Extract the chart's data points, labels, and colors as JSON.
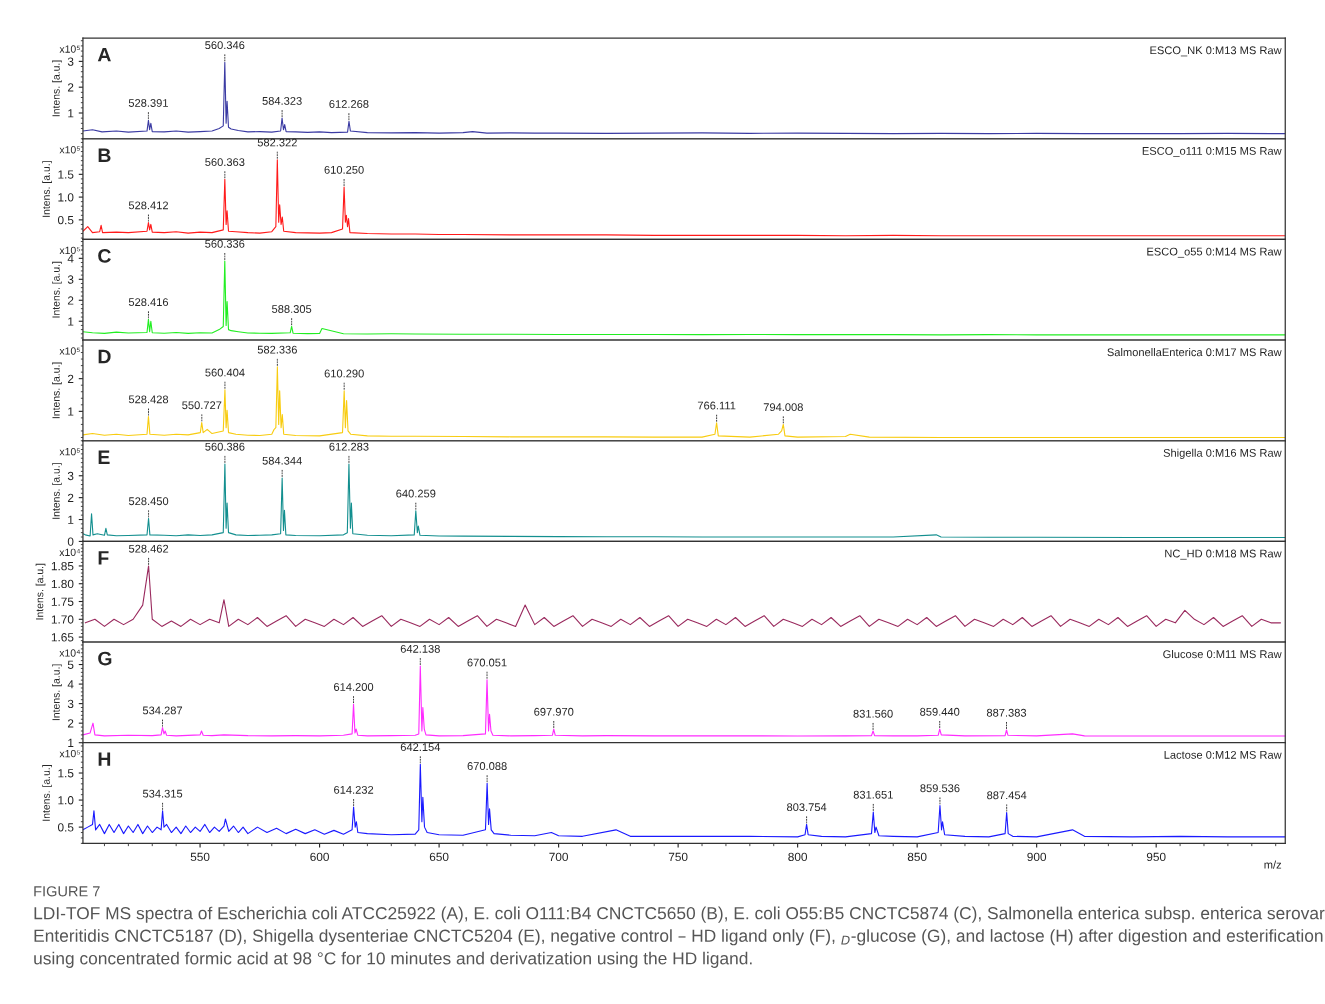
{
  "chart_data": [
    {
      "type": "line",
      "title": "A",
      "subtitle": "ESCO_NK 0:M13 MS Raw",
      "ylabel": "Intens. [a.u.]",
      "xlim": [
        501,
        1004
      ],
      "xticks": [
        550,
        600,
        650,
        700,
        750,
        800,
        850,
        900,
        950
      ],
      "ylim": [
        0,
        3.9
      ],
      "yticks": [
        1,
        2,
        3
      ],
      "tick_labels": "y",
      "series": [
        {
          "color": "#3b3ba3",
          "x": [
            501,
            505,
            509,
            515,
            520,
            527.8,
            528.4,
            528.9,
            529.4,
            530,
            535,
            540,
            545,
            550,
            555,
            558,
            559.7,
            560.35,
            560.9,
            561.3,
            561.9,
            563,
            566,
            570,
            575,
            580,
            583.7,
            584.3,
            584.9,
            585.4,
            586,
            590,
            595,
            600,
            605,
            611.7,
            612.3,
            612.9,
            620,
            630,
            640,
            650,
            660,
            664,
            670,
            680,
            690,
            700,
            720,
            740,
            760,
            780,
            800,
            820,
            840,
            860,
            880,
            900,
            920,
            940,
            960,
            980,
            1004
          ],
          "values": [
            0.3,
            0.35,
            0.27,
            0.3,
            0.26,
            0.3,
            0.72,
            0.35,
            0.6,
            0.28,
            0.27,
            0.3,
            0.26,
            0.28,
            0.3,
            0.4,
            0.5,
            2.96,
            0.6,
            1.45,
            0.45,
            0.38,
            0.32,
            0.27,
            0.28,
            0.26,
            0.3,
            0.8,
            0.35,
            0.55,
            0.28,
            0.27,
            0.25,
            0.27,
            0.24,
            0.26,
            0.68,
            0.3,
            0.24,
            0.23,
            0.24,
            0.22,
            0.24,
            0.28,
            0.22,
            0.23,
            0.22,
            0.22,
            0.21,
            0.22,
            0.23,
            0.21,
            0.22,
            0.21,
            0.2,
            0.21,
            0.2,
            0.21,
            0.2,
            0.2,
            0.2,
            0.21,
            0.2
          ]
        }
      ],
      "annotations": [
        "x10⁵",
        {
          "text": "528.391",
          "x": 528.391,
          "y": 0.72
        },
        {
          "text": "560.346",
          "x": 560.346,
          "y": 2.96
        },
        {
          "text": "584.323",
          "x": 584.323,
          "y": 0.8
        },
        {
          "text": "612.268",
          "x": 612.268,
          "y": 0.68
        }
      ]
    },
    {
      "type": "line",
      "title": "B",
      "subtitle": "ESCO_o111 0:M15 MS Raw",
      "ylabel": "Intens. [a.u.]",
      "xlim": [
        501,
        1004
      ],
      "xticks": [
        550,
        600,
        650,
        700,
        750,
        800,
        850,
        900,
        950
      ],
      "ylim": [
        0.07,
        2.28
      ],
      "yticks": [
        0.5,
        {
          "value": 1.0,
          "label": "1.0"
        },
        1.5
      ],
      "tick_labels": "y",
      "series": [
        {
          "color": "#ff1a1a",
          "x": [
            501,
            503,
            505,
            508,
            508.6,
            509.2,
            515,
            520,
            527.8,
            528.4,
            528.9,
            529.4,
            530,
            535,
            540,
            545,
            550,
            555,
            559.7,
            560.36,
            560.9,
            561.3,
            561.9,
            565,
            570,
            575,
            580,
            581.7,
            582.32,
            582.9,
            583.3,
            583.9,
            584.4,
            585,
            590,
            600,
            605,
            609.6,
            610.25,
            610.8,
            611.2,
            611.7,
            612.1,
            612.7,
            620,
            630,
            640,
            650,
            660,
            680,
            700,
            720,
            740,
            760,
            780,
            800,
            820,
            840,
            860,
            880,
            900,
            920,
            940,
            960,
            980,
            1004
          ],
          "values": [
            0.25,
            0.35,
            0.22,
            0.24,
            0.38,
            0.22,
            0.23,
            0.22,
            0.25,
            0.44,
            0.28,
            0.4,
            0.23,
            0.22,
            0.24,
            0.21,
            0.23,
            0.22,
            0.28,
            1.39,
            0.4,
            0.7,
            0.25,
            0.24,
            0.22,
            0.21,
            0.24,
            0.35,
            1.82,
            0.45,
            0.83,
            0.4,
            0.56,
            0.25,
            0.22,
            0.21,
            0.22,
            0.3,
            1.22,
            0.45,
            0.6,
            0.35,
            0.53,
            0.22,
            0.2,
            0.19,
            0.19,
            0.18,
            0.18,
            0.17,
            0.17,
            0.17,
            0.16,
            0.16,
            0.16,
            0.16,
            0.15,
            0.16,
            0.15,
            0.15,
            0.15,
            0.15,
            0.15,
            0.15,
            0.15,
            0.15
          ]
        }
      ],
      "annotations": [
        "x10⁵",
        {
          "text": "528.412",
          "x": 528.412,
          "y": 0.44
        },
        {
          "text": "560.363",
          "x": 560.363,
          "y": 1.39
        },
        {
          "text": "582.322",
          "x": 582.322,
          "y": 1.82
        },
        {
          "text": "610.250",
          "x": 610.25,
          "y": 1.22
        }
      ]
    },
    {
      "type": "line",
      "title": "C",
      "subtitle": "ESCO_o55 0:M14 MS Raw",
      "ylabel": "Intens. [a.u.]",
      "xlim": [
        501,
        1004
      ],
      "xticks": [
        550,
        600,
        650,
        700,
        750,
        800,
        850,
        900,
        950
      ],
      "ylim": [
        0.1,
        4.9
      ],
      "yticks": [
        1,
        2,
        3,
        4
      ],
      "tick_labels": "y",
      "series": [
        {
          "color": "#22ee22",
          "x": [
            501,
            505,
            510,
            515,
            520,
            527.8,
            528.4,
            528.9,
            529.4,
            530,
            535,
            540,
            545,
            550,
            555,
            558,
            559.7,
            560.34,
            560.9,
            561.3,
            561.9,
            563,
            566,
            570,
            575,
            580,
            587.7,
            588.3,
            588.9,
            595,
            600,
            601,
            610,
            620,
            630,
            640,
            660,
            680,
            700,
            720,
            740,
            760,
            780,
            800,
            820,
            840,
            860,
            880,
            900,
            920,
            940,
            960,
            980,
            1004
          ],
          "values": [
            0.5,
            0.45,
            0.42,
            0.48,
            0.44,
            0.46,
            1.09,
            0.5,
            1.0,
            0.45,
            0.43,
            0.46,
            0.42,
            0.45,
            0.44,
            0.6,
            0.75,
            3.87,
            0.8,
            1.94,
            0.6,
            0.55,
            0.5,
            0.44,
            0.43,
            0.42,
            0.45,
            0.76,
            0.43,
            0.41,
            0.42,
            0.65,
            0.4,
            0.39,
            0.4,
            0.39,
            0.38,
            0.38,
            0.37,
            0.37,
            0.37,
            0.36,
            0.37,
            0.36,
            0.36,
            0.36,
            0.35,
            0.36,
            0.35,
            0.35,
            0.35,
            0.35,
            0.35,
            0.35
          ]
        }
      ],
      "annotations": [
        "x10⁵",
        {
          "text": "528.416",
          "x": 528.416,
          "y": 1.09
        },
        {
          "text": "560.336",
          "x": 560.336,
          "y": 3.87
        },
        {
          "text": "588.305",
          "x": 588.305,
          "y": 0.76
        }
      ]
    },
    {
      "type": "line",
      "title": "D",
      "subtitle": "SalmonellaEnterica 0:M17 MS Raw",
      "ylabel": "Intens. [a.u.]",
      "xlim": [
        501,
        1004
      ],
      "xticks": [
        550,
        600,
        650,
        700,
        750,
        800,
        850,
        900,
        950
      ],
      "ylim": [
        0.1,
        3.18
      ],
      "yticks": [
        1,
        2
      ],
      "tick_labels": "y",
      "series": [
        {
          "color": "#f8cc10",
          "x": [
            501,
            505,
            510,
            515,
            520,
            527.8,
            528.4,
            529,
            535,
            540,
            545,
            550.1,
            550.7,
            551.3,
            553,
            555,
            559.7,
            560.4,
            560.9,
            561.3,
            561.9,
            565,
            570,
            575,
            580,
            581,
            581.7,
            582.34,
            582.9,
            583.3,
            583.9,
            584.4,
            585,
            590,
            600,
            609.6,
            610.29,
            610.8,
            611.3,
            611.9,
            613,
            620,
            630,
            640,
            660,
            680,
            700,
            720,
            740,
            760,
            765.4,
            766.1,
            766.8,
            780,
            792,
            793.3,
            794,
            794.7,
            800,
            820,
            822,
            830,
            860,
            900,
            940,
            980,
            1004
          ],
          "values": [
            0.28,
            0.32,
            0.27,
            0.3,
            0.26,
            0.3,
            0.84,
            0.3,
            0.27,
            0.3,
            0.28,
            0.35,
            0.66,
            0.35,
            0.45,
            0.32,
            0.4,
            1.66,
            0.5,
            1.03,
            0.35,
            0.3,
            0.27,
            0.26,
            0.3,
            0.45,
            0.5,
            2.36,
            0.6,
            1.63,
            0.5,
            0.9,
            0.3,
            0.26,
            0.25,
            0.35,
            1.63,
            0.5,
            1.33,
            0.4,
            0.3,
            0.25,
            0.24,
            0.24,
            0.23,
            0.22,
            0.22,
            0.22,
            0.21,
            0.21,
            0.3,
            0.65,
            0.25,
            0.21,
            0.3,
            0.4,
            0.6,
            0.25,
            0.21,
            0.23,
            0.3,
            0.21,
            0.2,
            0.2,
            0.2,
            0.2,
            0.2
          ]
        }
      ],
      "annotations": [
        "x10⁵",
        {
          "text": "528.428",
          "x": 528.428,
          "y": 0.84
        },
        {
          "text": "550.727",
          "x": 550.727,
          "y": 0.66
        },
        {
          "text": "560.404",
          "x": 560.404,
          "y": 1.66
        },
        {
          "text": "582.336",
          "x": 582.336,
          "y": 2.36
        },
        {
          "text": "610.290",
          "x": 610.29,
          "y": 1.63
        },
        {
          "text": "766.111",
          "x": 766.111,
          "y": 0.65
        },
        {
          "text": "794.008",
          "x": 794.008,
          "y": 0.6
        }
      ]
    },
    {
      "type": "line",
      "title": "E",
      "subtitle": "Shigella 0:M16 MS Raw",
      "ylabel": "Intens. [a.u.]",
      "xlim": [
        501,
        1004
      ],
      "xticks": [
        550,
        600,
        650,
        700,
        750,
        800,
        850,
        900,
        950
      ],
      "ylim": [
        0,
        4.6
      ],
      "yticks": [
        0,
        1,
        2,
        3
      ],
      "tick_labels": "y",
      "series": [
        {
          "color": "#138f8f",
          "x": [
            501,
            502,
            504,
            504.6,
            505.2,
            507,
            510,
            510.6,
            511.2,
            515,
            520,
            527.8,
            528.45,
            529,
            535,
            540,
            545,
            550,
            555,
            559.7,
            560.39,
            560.9,
            561.3,
            561.9,
            565,
            570,
            575,
            580,
            583.7,
            584.34,
            584.9,
            585.3,
            585.9,
            590,
            600,
            610,
            611.6,
            612.28,
            612.9,
            613.3,
            613.9,
            620,
            630,
            639.6,
            640.26,
            640.9,
            641.3,
            642,
            650,
            660,
            680,
            700,
            720,
            740,
            760,
            780,
            800,
            820,
            840,
            858,
            860,
            880,
            900,
            940,
            980,
            1004
          ],
          "values": [
            0.35,
            0.3,
            0.25,
            1.26,
            0.3,
            0.35,
            0.28,
            0.6,
            0.3,
            0.26,
            0.27,
            0.3,
            1.05,
            0.3,
            0.28,
            0.26,
            0.3,
            0.27,
            0.3,
            0.4,
            3.54,
            0.6,
            1.75,
            0.4,
            0.3,
            0.27,
            0.28,
            0.3,
            0.35,
            2.9,
            0.5,
            1.42,
            0.3,
            0.27,
            0.26,
            0.3,
            0.4,
            3.54,
            0.6,
            1.75,
            0.35,
            0.28,
            0.26,
            0.3,
            1.4,
            0.4,
            0.7,
            0.28,
            0.25,
            0.24,
            0.23,
            0.22,
            0.21,
            0.21,
            0.2,
            0.2,
            0.2,
            0.2,
            0.2,
            0.3,
            0.2,
            0.19,
            0.19,
            0.18,
            0.18,
            0.18
          ]
        }
      ],
      "annotations": [
        "x10⁵",
        {
          "text": "528.450",
          "x": 528.45,
          "y": 1.05
        },
        {
          "text": "560.386",
          "x": 560.386,
          "y": 3.54
        },
        {
          "text": "584.344",
          "x": 584.344,
          "y": 2.9
        },
        {
          "text": "612.283",
          "x": 612.283,
          "y": 3.54
        },
        {
          "text": "640.259",
          "x": 640.259,
          "y": 1.4
        }
      ]
    },
    {
      "type": "line",
      "title": "F",
      "subtitle": "NC_HD 0:M18 MS Raw",
      "ylabel": "Intens. [a.u.]",
      "xlim": [
        501,
        1004
      ],
      "xticks": [
        550,
        600,
        650,
        700,
        750,
        800,
        850,
        900,
        950
      ],
      "ylim": [
        1.636,
        1.919
      ],
      "yticks": [
        1.65,
        {
          "value": 1.7,
          "label": "1.70"
        },
        1.75,
        {
          "value": 1.8,
          "label": "1.80"
        },
        1.85
      ],
      "tick_labels": "y",
      "series": [
        {
          "color": "#9a2a5e",
          "x": [
            502,
            506,
            510,
            514,
            518,
            522,
            526,
            528.46,
            530,
            534,
            538,
            542,
            546,
            550,
            554,
            558,
            560,
            562,
            566,
            570,
            574,
            578,
            582,
            586,
            590,
            594,
            598,
            602,
            606,
            610,
            614,
            618,
            622,
            626,
            630,
            634,
            638,
            642,
            646,
            650,
            654,
            658,
            662,
            666,
            670,
            674,
            678,
            682,
            686,
            690,
            694,
            698,
            702,
            706,
            710,
            714,
            718,
            722,
            726,
            730,
            734,
            738,
            742,
            746,
            750,
            754,
            758,
            762,
            766,
            770,
            774,
            778,
            782,
            786,
            790,
            794,
            798,
            802,
            806,
            810,
            814,
            818,
            822,
            826,
            830,
            834,
            838,
            842,
            846,
            850,
            854,
            858,
            862,
            866,
            870,
            874,
            878,
            882,
            886,
            890,
            894,
            898,
            902,
            906,
            910,
            914,
            918,
            922,
            926,
            930,
            934,
            938,
            942,
            946,
            950,
            954,
            958,
            962,
            966,
            970,
            974,
            978,
            982,
            986,
            990,
            994,
            998,
            1002
          ],
          "values": [
            1.69,
            1.7,
            1.68,
            1.7,
            1.685,
            1.7,
            1.74,
            1.85,
            1.7,
            1.68,
            1.695,
            1.68,
            1.7,
            1.685,
            1.7,
            1.69,
            1.755,
            1.68,
            1.7,
            1.685,
            1.705,
            1.68,
            1.695,
            1.71,
            1.68,
            1.7,
            1.69,
            1.68,
            1.7,
            1.685,
            1.705,
            1.68,
            1.695,
            1.71,
            1.68,
            1.7,
            1.69,
            1.68,
            1.7,
            1.685,
            1.705,
            1.68,
            1.695,
            1.71,
            1.68,
            1.7,
            1.69,
            1.68,
            1.74,
            1.685,
            1.705,
            1.68,
            1.695,
            1.71,
            1.68,
            1.7,
            1.69,
            1.68,
            1.7,
            1.685,
            1.705,
            1.68,
            1.695,
            1.71,
            1.68,
            1.7,
            1.69,
            1.68,
            1.7,
            1.685,
            1.705,
            1.68,
            1.695,
            1.71,
            1.68,
            1.7,
            1.69,
            1.68,
            1.7,
            1.685,
            1.705,
            1.68,
            1.695,
            1.71,
            1.68,
            1.7,
            1.69,
            1.68,
            1.7,
            1.685,
            1.705,
            1.68,
            1.695,
            1.71,
            1.68,
            1.7,
            1.69,
            1.68,
            1.7,
            1.685,
            1.705,
            1.68,
            1.695,
            1.71,
            1.68,
            1.7,
            1.69,
            1.68,
            1.7,
            1.685,
            1.705,
            1.68,
            1.695,
            1.71,
            1.68,
            1.7,
            1.69,
            1.725,
            1.7,
            1.685,
            1.705,
            1.68,
            1.695,
            1.71,
            1.68,
            1.7,
            1.69,
            1.69
          ]
        }
      ],
      "annotations": [
        "x10⁴",
        {
          "text": "528.462",
          "x": 528.462,
          "y": 1.85
        }
      ]
    },
    {
      "type": "line",
      "title": "G",
      "subtitle": "Glucose 0:M11 MS Raw",
      "ylabel": "Intens. [a.u.]",
      "xlim": [
        501,
        1004
      ],
      "xticks": [
        550,
        600,
        650,
        700,
        750,
        800,
        850,
        900,
        950
      ],
      "ylim": [
        1.0,
        6.15
      ],
      "yticks": [
        1,
        2,
        3,
        4,
        5
      ],
      "tick_labels": "y",
      "series": [
        {
          "color": "#ff2cff",
          "x": [
            501,
            504,
            505.2,
            506,
            510,
            520,
            530,
            533.7,
            534.29,
            534.9,
            535.4,
            536,
            540,
            550,
            550.6,
            551.3,
            555,
            560,
            570,
            580,
            590,
            600,
            610,
            613.6,
            614.2,
            614.8,
            615.3,
            616,
            620,
            630,
            640,
            641.5,
            642.14,
            642.8,
            643.2,
            643.8,
            644.5,
            650,
            660,
            669.4,
            670.05,
            670.7,
            671.1,
            671.7,
            672.5,
            680,
            690,
            697.4,
            697.97,
            698.6,
            710,
            720,
            740,
            760,
            780,
            800,
            820,
            830.9,
            831.56,
            832.2,
            840,
            850,
            858.8,
            859.44,
            860.1,
            870,
            886.8,
            887.38,
            888,
            900,
            915,
            920,
            940,
            960,
            980,
            1004
          ],
          "values": [
            1.4,
            1.5,
            2.0,
            1.4,
            1.35,
            1.38,
            1.36,
            1.4,
            1.77,
            1.45,
            1.6,
            1.38,
            1.35,
            1.4,
            1.6,
            1.38,
            1.36,
            1.4,
            1.36,
            1.35,
            1.36,
            1.35,
            1.38,
            1.45,
            2.97,
            1.5,
            1.7,
            1.38,
            1.35,
            1.36,
            1.38,
            1.45,
            4.92,
            1.6,
            2.8,
            1.7,
            1.4,
            1.35,
            1.36,
            1.45,
            4.22,
            1.6,
            2.45,
            1.6,
            1.38,
            1.35,
            1.36,
            1.38,
            1.7,
            1.38,
            1.35,
            1.36,
            1.35,
            1.35,
            1.35,
            1.34,
            1.35,
            1.36,
            1.6,
            1.36,
            1.35,
            1.35,
            1.38,
            1.7,
            1.4,
            1.35,
            1.36,
            1.65,
            1.38,
            1.35,
            1.45,
            1.35,
            1.34,
            1.34,
            1.34,
            1.34
          ]
        }
      ],
      "annotations": [
        "x10⁴",
        {
          "text": "534.287",
          "x": 534.287,
          "y": 1.77
        },
        {
          "text": "614.200",
          "x": 614.2,
          "y": 2.97
        },
        {
          "text": "642.138",
          "x": 642.138,
          "y": 4.92
        },
        {
          "text": "670.051",
          "x": 670.051,
          "y": 4.22
        },
        {
          "text": "697.970",
          "x": 697.97,
          "y": 1.7
        },
        {
          "text": "831.560",
          "x": 831.56,
          "y": 1.6
        },
        {
          "text": "859.440",
          "x": 859.44,
          "y": 1.7
        },
        {
          "text": "887.383",
          "x": 887.383,
          "y": 1.65
        }
      ]
    },
    {
      "type": "line",
      "title": "H",
      "subtitle": "Lactose 0:M12 MS Raw",
      "ylabel": "Intens. [a.u.]",
      "xlabel": "m/z",
      "xlim": [
        501,
        1004
      ],
      "xticks": [
        550,
        600,
        650,
        700,
        750,
        800,
        850,
        900,
        950
      ],
      "ylim": [
        0.2,
        2.06
      ],
      "yticks": [
        0.5,
        {
          "value": 1.0,
          "label": "1.0"
        },
        1.5
      ],
      "series": [
        {
          "color": "#1a1aff",
          "x": [
            501,
            503,
            505,
            505.6,
            506.3,
            508,
            510,
            512,
            514,
            516,
            518,
            520,
            522,
            524,
            526,
            528,
            530,
            532,
            533.7,
            534.32,
            534.9,
            536,
            538,
            540,
            542,
            544,
            546,
            548,
            550,
            552,
            554,
            556,
            558,
            560,
            560.6,
            562,
            564,
            566,
            568,
            570,
            574,
            578,
            582,
            586,
            590,
            594,
            598,
            602,
            606,
            610,
            613.6,
            614.23,
            614.9,
            615.4,
            616,
            620,
            630,
            640,
            641.5,
            642.15,
            642.8,
            643.2,
            643.9,
            645,
            650,
            660,
            669.4,
            670.09,
            670.7,
            671.1,
            671.8,
            673,
            680,
            690,
            697,
            700,
            710,
            724,
            730,
            740,
            760,
            780,
            800,
            803.1,
            803.75,
            804.4,
            810,
            820,
            830.9,
            831.65,
            832.3,
            832.8,
            834,
            840,
            850,
            858.8,
            859.54,
            860.2,
            860.6,
            861.5,
            870,
            880,
            886.8,
            887.45,
            888.1,
            890,
            900,
            915,
            920,
            940,
            960,
            980,
            1004
          ],
          "values": [
            0.45,
            0.5,
            0.55,
            0.8,
            0.45,
            0.55,
            0.38,
            0.55,
            0.4,
            0.55,
            0.38,
            0.52,
            0.4,
            0.55,
            0.38,
            0.52,
            0.4,
            0.5,
            0.45,
            0.8,
            0.5,
            0.55,
            0.4,
            0.5,
            0.38,
            0.52,
            0.4,
            0.5,
            0.42,
            0.55,
            0.4,
            0.5,
            0.42,
            0.52,
            0.65,
            0.42,
            0.52,
            0.4,
            0.5,
            0.38,
            0.5,
            0.4,
            0.48,
            0.38,
            0.46,
            0.38,
            0.45,
            0.37,
            0.44,
            0.37,
            0.45,
            0.87,
            0.5,
            0.6,
            0.4,
            0.38,
            0.36,
            0.37,
            0.45,
            1.66,
            0.6,
            1.05,
            0.5,
            0.4,
            0.36,
            0.35,
            0.45,
            1.31,
            0.55,
            0.84,
            0.45,
            0.38,
            0.35,
            0.34,
            0.4,
            0.34,
            0.33,
            0.45,
            0.33,
            0.33,
            0.33,
            0.33,
            0.32,
            0.36,
            0.55,
            0.36,
            0.33,
            0.32,
            0.38,
            0.78,
            0.4,
            0.5,
            0.34,
            0.33,
            0.32,
            0.4,
            0.9,
            0.45,
            0.6,
            0.36,
            0.33,
            0.32,
            0.38,
            0.77,
            0.38,
            0.33,
            0.32,
            0.45,
            0.33,
            0.32,
            0.33,
            0.32,
            0.32
          ]
        }
      ],
      "annotations": [
        "x10⁵",
        "FIGURE 7",
        "LDI-TOF MS spectra of Escherichia coli ATCC25922 (A), E. coli O111:B4 CNCTC5650 (B), E. coli O55:B5 CNCTC5874 (C), Salmonella enterica subsp. enterica serovar Enteritidis CNCTC5187 (D), Shigella dysenteriae CNCTC5204 (E), negative control – HD ligand only (F), $_{D}$-glucose (G), and lactose (H) after digestion and esterification using concentrated formic acid at 98 °C for 10 minutes and derivatization using the HD ligand.",
        {
          "text": "534.315",
          "x": 534.315,
          "y": 0.8
        },
        {
          "text": "614.232",
          "x": 614.232,
          "y": 0.87
        },
        {
          "text": "642.154",
          "x": 642.154,
          "y": 1.66
        },
        {
          "text": "670.088",
          "x": 670.088,
          "y": 1.31
        },
        {
          "text": "803.754",
          "x": 803.754,
          "y": 0.55
        },
        {
          "text": "831.651",
          "x": 831.651,
          "y": 0.78
        },
        {
          "text": "859.536",
          "x": 859.536,
          "y": 0.9
        },
        {
          "text": "887.454",
          "x": 887.454,
          "y": 0.77
        }
      ]
    }
  ]
}
